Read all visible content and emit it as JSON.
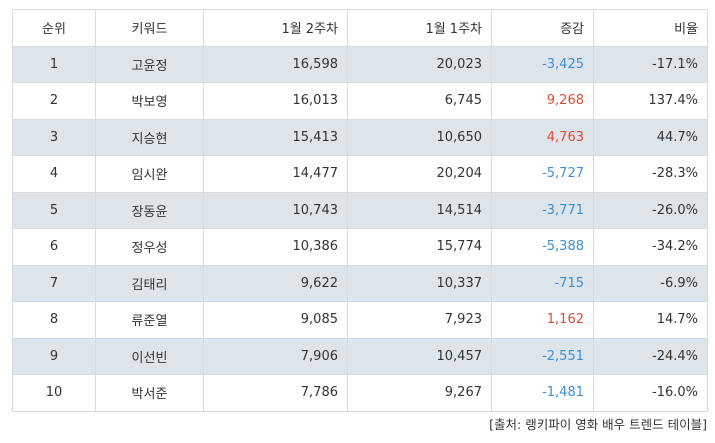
{
  "table": {
    "headers": [
      "순위",
      "키워드",
      "1월 2주차",
      "1월 1주차",
      "증감",
      "비율"
    ],
    "rows": [
      {
        "rank": "1",
        "keyword": "고윤정",
        "week2": "16,598",
        "week1": "20,023",
        "change": "-3,425",
        "ratio": "-17.1%",
        "trend": "down"
      },
      {
        "rank": "2",
        "keyword": "박보영",
        "week2": "16,013",
        "week1": "6,745",
        "change": "9,268",
        "ratio": "137.4%",
        "trend": "up"
      },
      {
        "rank": "3",
        "keyword": "지승현",
        "week2": "15,413",
        "week1": "10,650",
        "change": "4,763",
        "ratio": "44.7%",
        "trend": "up"
      },
      {
        "rank": "4",
        "keyword": "임시완",
        "week2": "14,477",
        "week1": "20,204",
        "change": "-5,727",
        "ratio": "-28.3%",
        "trend": "down"
      },
      {
        "rank": "5",
        "keyword": "장동윤",
        "week2": "10,743",
        "week1": "14,514",
        "change": "-3,771",
        "ratio": "-26.0%",
        "trend": "down"
      },
      {
        "rank": "6",
        "keyword": "정우성",
        "week2": "10,386",
        "week1": "15,774",
        "change": "-5,388",
        "ratio": "-34.2%",
        "trend": "down"
      },
      {
        "rank": "7",
        "keyword": "김태리",
        "week2": "9,622",
        "week1": "10,337",
        "change": "-715",
        "ratio": "-6.9%",
        "trend": "down"
      },
      {
        "rank": "8",
        "keyword": "류준열",
        "week2": "9,085",
        "week1": "7,923",
        "change": "1,162",
        "ratio": "14.7%",
        "trend": "up"
      },
      {
        "rank": "9",
        "keyword": "이선빈",
        "week2": "7,906",
        "week1": "10,457",
        "change": "-2,551",
        "ratio": "-24.4%",
        "trend": "down"
      },
      {
        "rank": "10",
        "keyword": "박서준",
        "week2": "7,786",
        "week1": "9,267",
        "change": "-1,481",
        "ratio": "-16.0%",
        "trend": "down"
      }
    ]
  },
  "colors": {
    "change_down": "#3c8fd6",
    "change_up": "#de4b39",
    "stripe": "#dde5eb",
    "border": "#d6dbe0"
  },
  "source": "[출처: 랭키파이 영화 배우 트렌드 테이블]"
}
